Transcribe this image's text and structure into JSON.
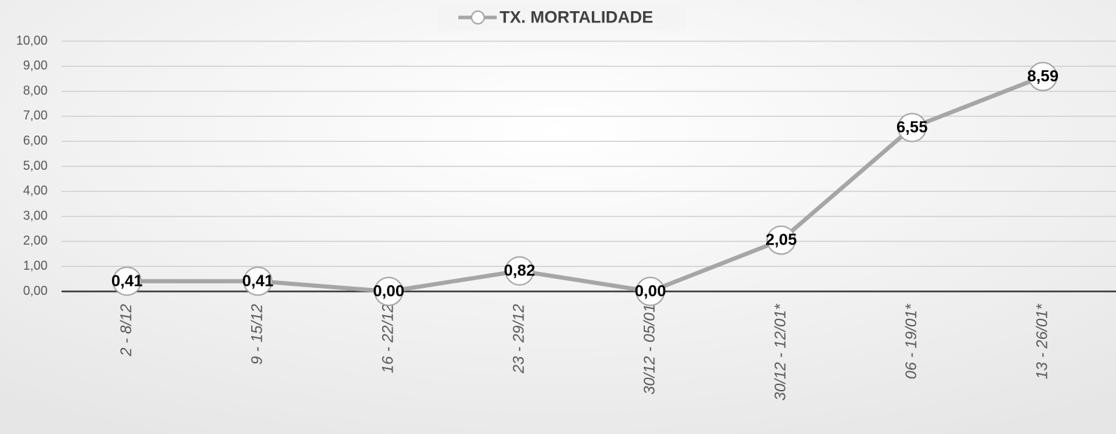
{
  "chart_data": {
    "type": "line",
    "categories": [
      "2 - 8/12",
      "9 - 15/12",
      "16 - 22/12",
      "23 - 29/12",
      "30/12 - 05/01",
      "30/12 - 12/01*",
      "06 - 19/01*",
      "13 - 26/01*"
    ],
    "series": [
      {
        "name": "TX. MORTALIDADE",
        "color": "#a6a6a6",
        "values": [
          0.41,
          0.41,
          0.0,
          0.82,
          0.0,
          2.05,
          6.55,
          8.59
        ],
        "value_labels": [
          "0,41",
          "0,41",
          "0,00",
          "0,82",
          "0,00",
          "2,05",
          "6,55",
          "8,59"
        ]
      }
    ],
    "ylim": [
      0,
      10
    ],
    "yticks": [
      {
        "value": 0,
        "label": "0,00"
      },
      {
        "value": 1,
        "label": "1,00"
      },
      {
        "value": 2,
        "label": "2,00"
      },
      {
        "value": 3,
        "label": "3,00"
      },
      {
        "value": 4,
        "label": "4,00"
      },
      {
        "value": 5,
        "label": "5,00"
      },
      {
        "value": 6,
        "label": "6,00"
      },
      {
        "value": 7,
        "label": "7,00"
      },
      {
        "value": 8,
        "label": "8,00"
      },
      {
        "value": 9,
        "label": "9,00"
      },
      {
        "value": 10,
        "label": "10,00"
      }
    ],
    "grid": true,
    "legend": "top"
  }
}
